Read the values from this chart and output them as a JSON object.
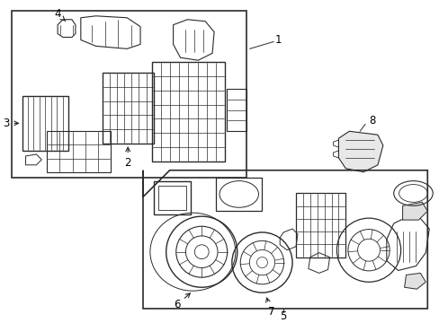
{
  "bg_color": "#ffffff",
  "line_color": "#2a2a2a",
  "label_color": "#000000",
  "figure_width": 4.89,
  "figure_height": 3.6,
  "dpi": 100,
  "font_size": 8.5,
  "lw": 0.9
}
